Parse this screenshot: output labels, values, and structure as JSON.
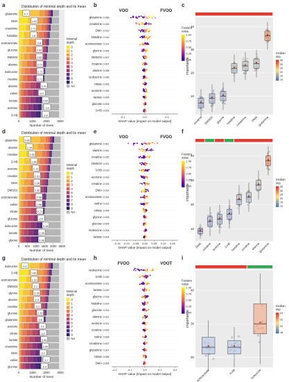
{
  "figure": {
    "panel_letters": [
      "a",
      "b",
      "c",
      "d",
      "e",
      "f",
      "g",
      "h",
      "i"
    ]
  },
  "legend_minimal_depth": {
    "title": "Minimal\ndepth",
    "levels": [
      "0",
      "1",
      "2",
      "3",
      "4",
      "5",
      "6",
      "7",
      "8",
      "9",
      "NA"
    ],
    "colors": [
      "#f6e52a",
      "#f5c242",
      "#f1a04a",
      "#e67d54",
      "#d3605e",
      "#b34a6c",
      "#8f3a76",
      "#6a2f7a",
      "#4a277a",
      "#2d1e60",
      "#b5b5b5"
    ]
  },
  "legend_feature": {
    "title": "Feature\nvalue",
    "ticks": [
      "1.00",
      "0.75",
      "0.50",
      "0.25",
      "0.00"
    ],
    "colors": [
      "#f0f921",
      "#fca636",
      "#e16462",
      "#b12a90",
      "#6a00a8",
      "#0d0887"
    ]
  },
  "legend_median": {
    "title": "median\nimp",
    "top": "#d73027",
    "mid": "#fee08b",
    "bottom": "#4575b4"
  },
  "chart_data": [
    {
      "panel": "a",
      "type": "bar",
      "stacked": true,
      "title": "Distribution of minimal depth and its mean",
      "xlabel": "Number of trees",
      "xticks": [
        "0",
        "1000",
        "2000",
        "3000"
      ],
      "xlim": [
        0,
        3300
      ],
      "categories": [
        "glutamine",
        "DMA",
        "creatinine",
        "histidine",
        "acetoacetate",
        "glucose",
        "DMSO2",
        "alanine",
        "isoleucine",
        "creatine",
        "alanine",
        "valine",
        "lactate",
        "acetone",
        "3-HB"
      ],
      "means": [
        "0.7",
        "1.92",
        "1.71",
        "1.8",
        "2.6",
        "2.63",
        "2.65",
        "2.71",
        "2.77",
        "2.71",
        "3.31",
        "3.0",
        "3.55",
        "3.8",
        "3.6"
      ]
    },
    {
      "panel": "b",
      "type": "scatter",
      "groups": [
        "VOO",
        "FVOO"
      ],
      "xlabel": "SHAP value (impact on model output)",
      "xticks": [
        "-0.1",
        "0.0",
        "0.1"
      ],
      "xlim": [
        -0.15,
        0.15
      ],
      "categories": [
        "glutamine",
        "creatinine",
        "DMA",
        "histidine",
        "acetoacetate",
        "glycine",
        "DMSO2",
        "creatine",
        "alanine",
        "isoleucine",
        "citrate",
        "acetone",
        "lactate",
        "glucose",
        "3-HB"
      ],
      "values": [
        "0.056",
        "0.026",
        "0.019",
        "0.019",
        "0.014",
        "0.009",
        "0.007",
        "0.007",
        "0.006",
        "0.006",
        "0.005",
        "0.005",
        "0.005",
        "0.004",
        "0.003"
      ]
    },
    {
      "panel": "c",
      "type": "box",
      "ylabel": "importance",
      "yticks": [
        "10",
        "20",
        "30",
        "40"
      ],
      "ylim": [
        2,
        44
      ],
      "categories": [
        "creatine",
        "DMSO2",
        "glycine",
        "histidine",
        "creatinine",
        "DMA",
        "glutamine"
      ],
      "medians": [
        7,
        9,
        10,
        22,
        23,
        24,
        36
      ],
      "q1": [
        5,
        7,
        8,
        20,
        21,
        22,
        34
      ],
      "q3": [
        9,
        11,
        12,
        24,
        25,
        26,
        38
      ],
      "legend_ticks": [
        "35",
        "30",
        "25",
        "20",
        "15",
        "10"
      ]
    },
    {
      "panel": "d",
      "type": "bar",
      "stacked": true,
      "title": "Distribution of minimal depth and its mean",
      "xlabel": "Number of trees",
      "xticks": [
        "0",
        "500",
        "1000",
        "1500",
        "2000",
        "2500"
      ],
      "xlim": [
        0,
        2650
      ],
      "categories": [
        "glutamine",
        "alanine",
        "creatine",
        "3-HB",
        "acetone",
        "creatine",
        "DMA",
        "DMSO2",
        "acetoacetate",
        "valine",
        "citrate",
        "glucose",
        "isoleucine",
        "lactate",
        "glycine"
      ],
      "means": [
        "0.83",
        "1.19",
        "1.55",
        "1.85",
        "2.12",
        "2.31",
        "2.28",
        "2.32",
        "2.58",
        "2.58",
        "2.71",
        "2.9",
        "3.58",
        "2.99",
        "2.99"
      ]
    },
    {
      "panel": "e",
      "type": "scatter",
      "groups": [
        "VOO",
        "FVOO"
      ],
      "xlabel": "SHAP value (impact on model output)",
      "xticks": [
        "-0.15",
        "-0.10",
        "-0.05",
        "0.00",
        "0.05",
        "0.10",
        "0.15"
      ],
      "xlim": [
        -0.18,
        0.18
      ],
      "categories": [
        "glutamine",
        "alanine",
        "creatine",
        "DMSO2",
        "3-HB",
        "acetone",
        "creatine",
        "DMA",
        "acetoacetate",
        "valine",
        "citrate",
        "glycine",
        "glucose",
        "isoleucine",
        "lactate"
      ],
      "values": [
        "0.061",
        "0.042",
        "0.025",
        "0.021",
        "0.019",
        "0.016",
        "0.015",
        "0.014",
        "0.014",
        "0.013",
        "0.009",
        "0.006",
        "0.005",
        "0.004",
        "0.004"
      ]
    },
    {
      "panel": "f",
      "type": "box",
      "ylabel": "importance",
      "yticks": [
        "10",
        "20",
        "30",
        "40"
      ],
      "ylim": [
        5,
        45
      ],
      "categories": [
        "DMA",
        "creatine",
        "acetone",
        "3-HB",
        "histidine",
        "creatine",
        "alanine",
        "glutamine"
      ],
      "medians": [
        9,
        13,
        14,
        16,
        22,
        23,
        28,
        38
      ],
      "q1": [
        8,
        11,
        12,
        14,
        20,
        21,
        26,
        36
      ],
      "q3": [
        10,
        15,
        16,
        18,
        24,
        25,
        30,
        40
      ],
      "legend_ticks": [
        "35",
        "30",
        "25",
        "20",
        "15",
        "10"
      ]
    },
    {
      "panel": "g",
      "type": "bar",
      "stacked": true,
      "title": "Distribution of minimal depth and its mean",
      "xlabel": "Number of trees",
      "xticks": [
        "0",
        "1000",
        "2000",
        "3000"
      ],
      "xlim": [
        0,
        3300
      ],
      "categories": [
        "isoleucine",
        "3-HB",
        "acetoacetate",
        "DMSO2",
        "glycine",
        "alanine",
        "creatine",
        "glucose",
        "glutamine",
        "acetone",
        "citrate",
        "lactate",
        "creatinine",
        "DMA",
        "valine",
        "glucose"
      ],
      "means": [
        "0.5",
        "1.82",
        "1.91",
        "2.1",
        "2.25",
        "2.3",
        "2.4",
        "2.75",
        "2.8",
        "3.1",
        "3.2",
        "3.35",
        "3.55",
        "3.2",
        "3.7",
        "3.4"
      ]
    },
    {
      "panel": "h",
      "type": "scatter",
      "groups": [
        "FVOO",
        "VOOT"
      ],
      "xlabel": "SHAP value (impact on model output)",
      "xticks": [
        "-0.2",
        "-0.1",
        "0.0",
        "0.1",
        "0.2"
      ],
      "xlim": [
        -0.22,
        0.22
      ],
      "categories": [
        "isoleucine",
        "3-HB",
        "acetoacetate",
        "lactate",
        "glycine",
        "histidine",
        "glucose",
        "alanine",
        "acetone",
        "creatine",
        "valine",
        "creatinine",
        "glutamine",
        "citrate",
        "DMA"
      ],
      "values": [
        "0.078",
        "0.035",
        "0.022",
        "0.020",
        "0.018",
        "0.014",
        "0.013",
        "0.012",
        "0.011",
        "0.009",
        "0.008",
        "0.007",
        "0.007",
        "0.006",
        "0.005"
      ]
    },
    {
      "panel": "i",
      "type": "box",
      "ylabel": "importance",
      "yticks": [
        "20",
        "30",
        "40"
      ],
      "ylim": [
        17,
        46
      ],
      "categories": [
        "acetoacetate",
        "3-HB",
        "isoleucine"
      ],
      "medians": [
        23,
        23,
        30
      ],
      "q1": [
        21,
        21,
        27
      ],
      "q3": [
        26,
        25,
        36
      ],
      "legend_ticks": [
        "24",
        "22",
        "20",
        "18"
      ]
    }
  ]
}
